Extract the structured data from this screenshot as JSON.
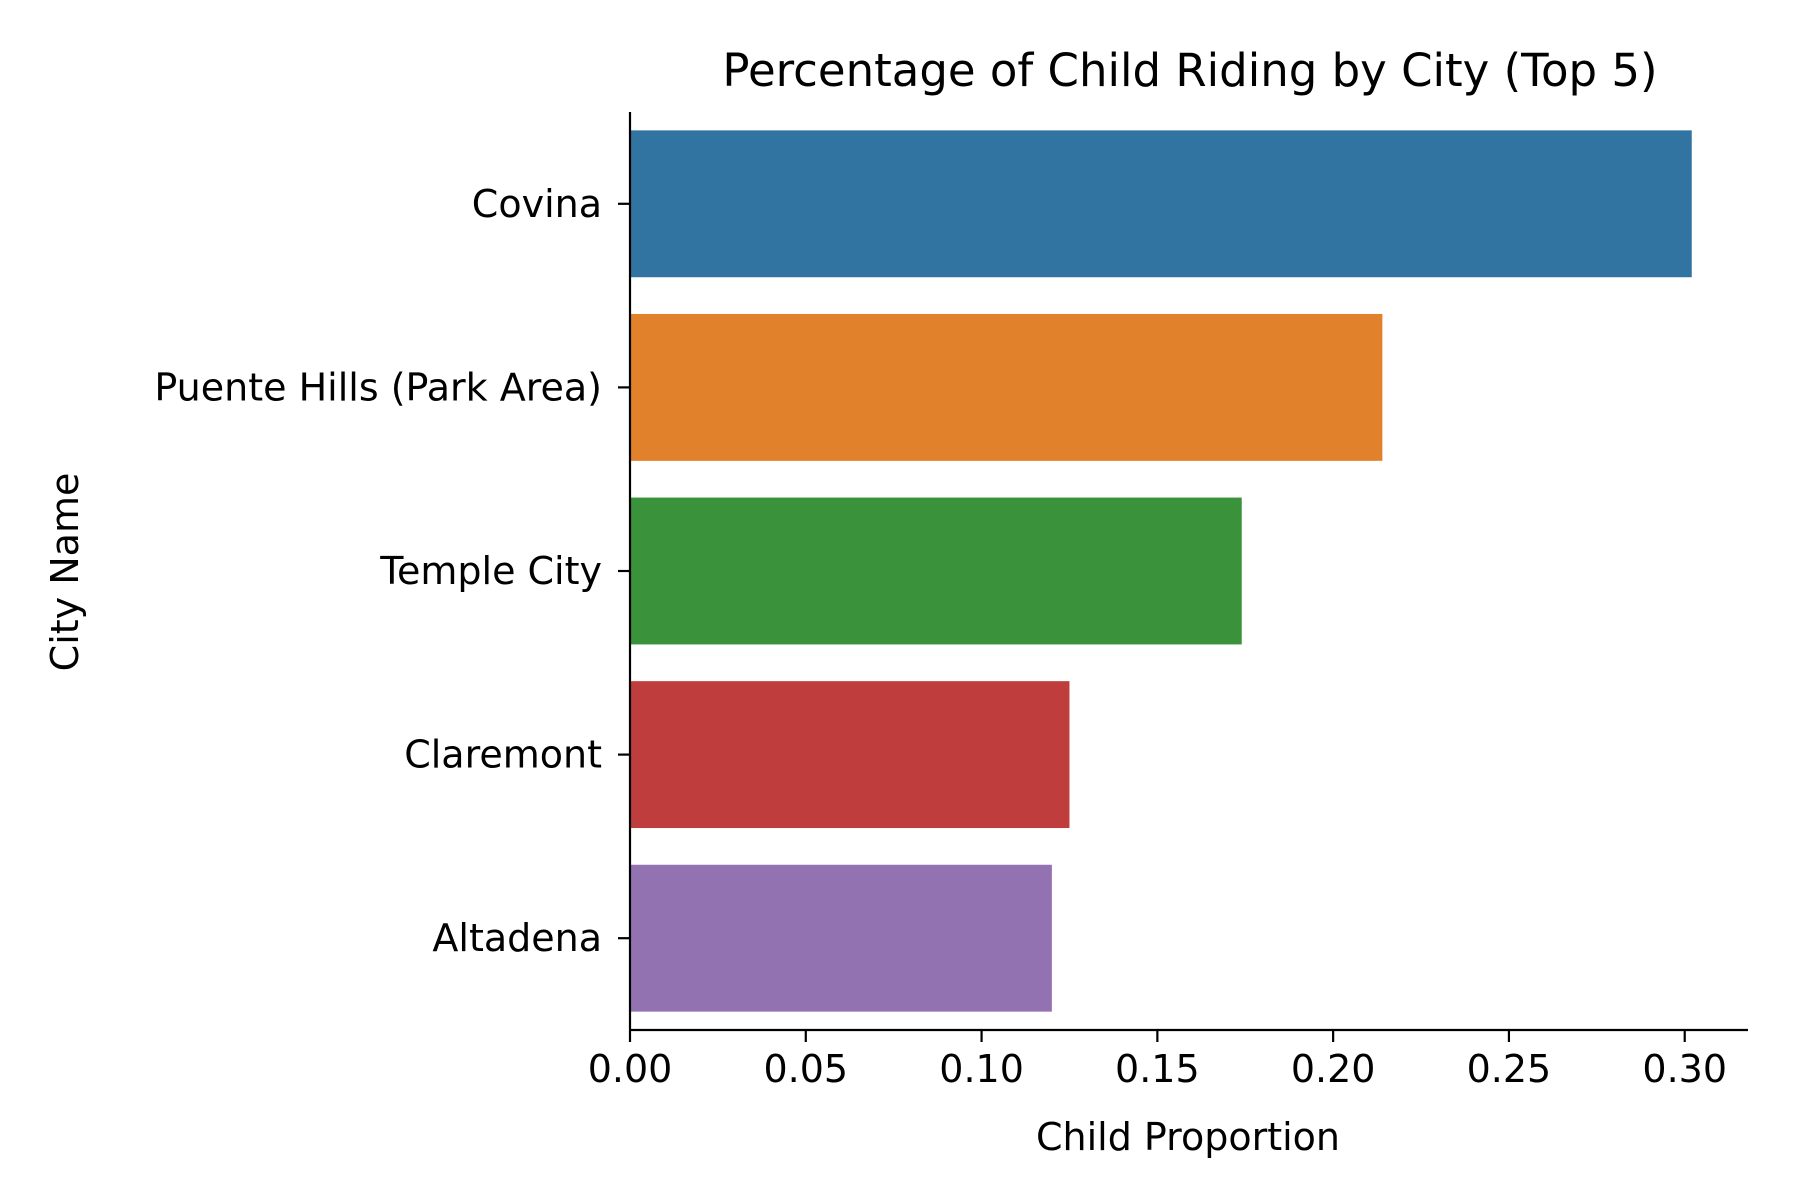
{
  "chart_data": {
    "type": "bar",
    "orientation": "horizontal",
    "title": "Percentage of Child Riding by City (Top 5)",
    "xlabel": "Child Proportion",
    "ylabel": "City Name",
    "categories": [
      "Covina",
      "Puente Hills (Park Area)",
      "Temple City",
      "Claremont",
      "Altadena"
    ],
    "values": [
      0.302,
      0.214,
      0.174,
      0.125,
      0.12
    ],
    "colors": [
      "#3274a1",
      "#e1812c",
      "#3a923a",
      "#c03d3e",
      "#9372b2"
    ],
    "xlim": [
      0,
      0.318
    ],
    "xticks": [
      0.0,
      0.05,
      0.1,
      0.15,
      0.2,
      0.25,
      0.3
    ],
    "xtick_labels": [
      "0.00",
      "0.05",
      "0.10",
      "0.15",
      "0.20",
      "0.25",
      "0.30"
    ],
    "grid": false,
    "legend": "none"
  }
}
